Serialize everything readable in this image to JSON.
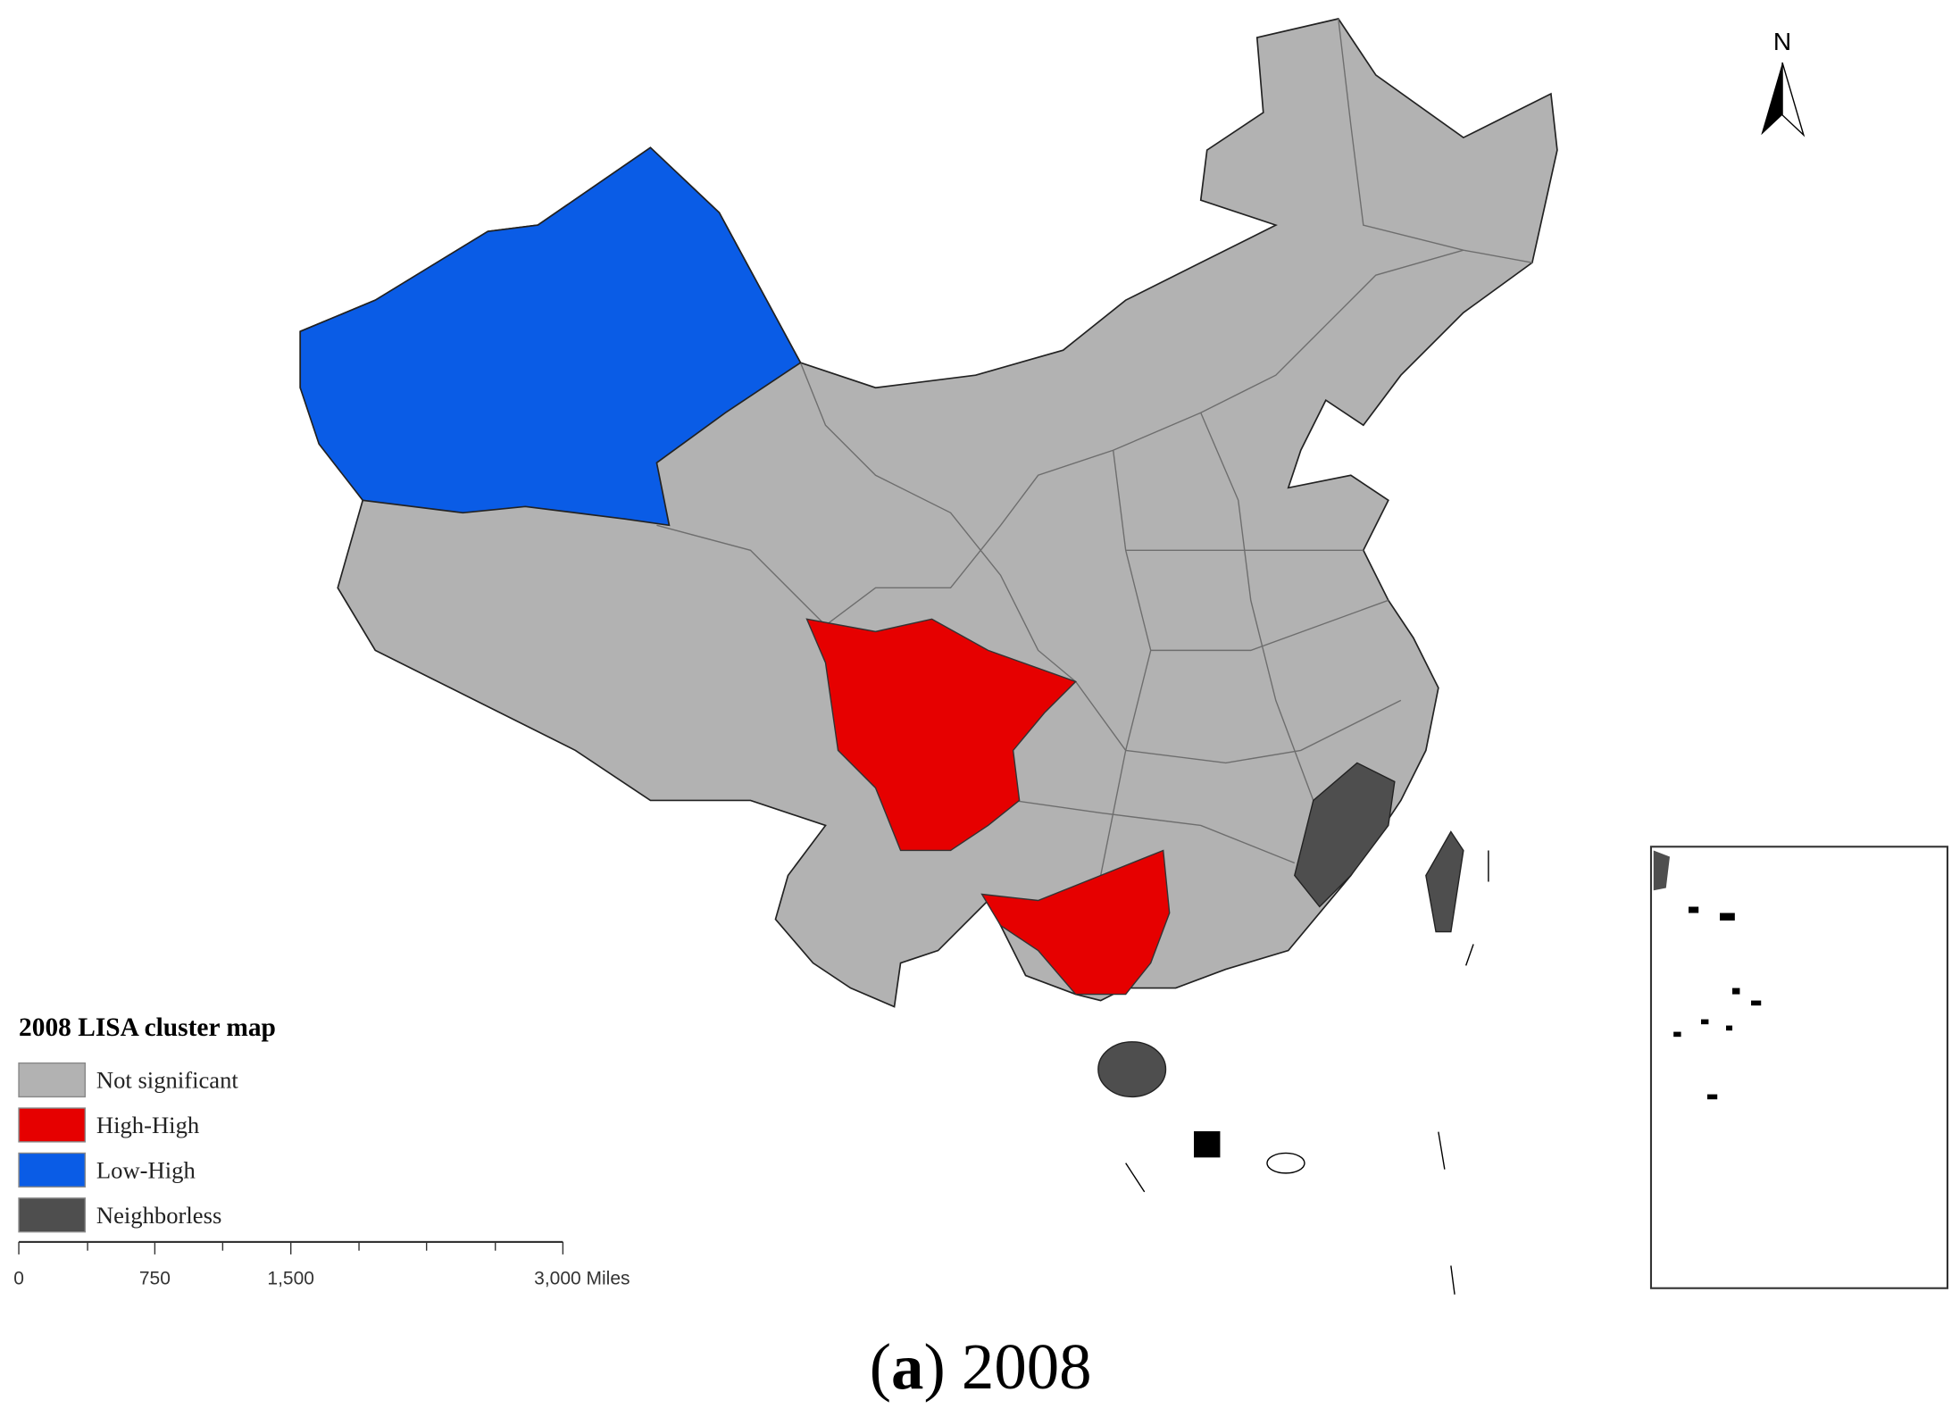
{
  "north": "N",
  "legend": {
    "title": "2008 LISA cluster map",
    "items": [
      {
        "label": "Not significant",
        "color": "#b2b2b2"
      },
      {
        "label": "High-High",
        "color": "#e60000"
      },
      {
        "label": "Low-High",
        "color": "#0a5ce6"
      },
      {
        "label": "Neighborless",
        "color": "#4e4e4e"
      }
    ]
  },
  "scale_bar": {
    "max": 3000,
    "ticks": [
      0,
      750,
      {
        "value": 1500,
        "label": "1,500"
      },
      {
        "value": 3000,
        "label": "3,000 Miles"
      }
    ]
  },
  "caption": {
    "open": "(",
    "letter": "a",
    "rest": ") 2008"
  }
}
